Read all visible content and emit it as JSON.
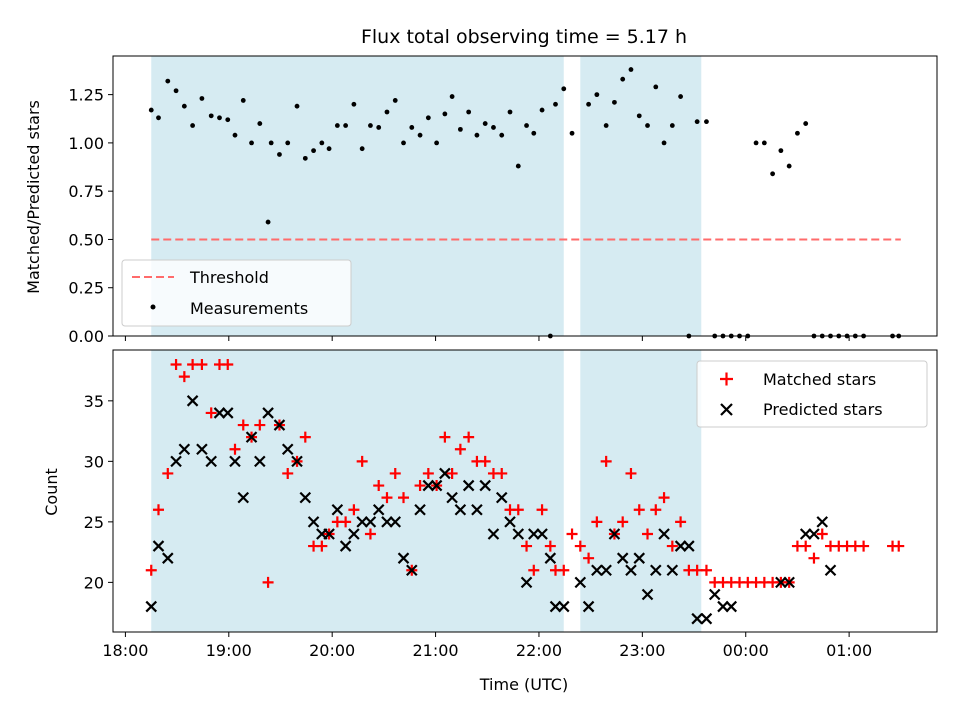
{
  "chart_data": {
    "title": "Flux total observing time = 5.17 h",
    "xlabel": "Time (UTC)",
    "x_unit": "hours since 18:00 UTC",
    "xlim": [
      -0.12,
      7.85
    ],
    "xticks": [
      {
        "value": 0,
        "label": "18:00"
      },
      {
        "value": 1,
        "label": "19:00"
      },
      {
        "value": 2,
        "label": "20:00"
      },
      {
        "value": 3,
        "label": "21:00"
      },
      {
        "value": 4,
        "label": "22:00"
      },
      {
        "value": 5,
        "label": "23:00"
      },
      {
        "value": 6,
        "label": "00:00"
      },
      {
        "value": 7,
        "label": "01:00"
      }
    ],
    "shaded_intervals": [
      [
        0.25,
        4.24
      ],
      [
        4.4,
        5.57
      ]
    ],
    "colors": {
      "shade": "#add8e6",
      "threshold": "#ff6b6b",
      "matched": "#ff0000",
      "predicted": "#000000",
      "measurement": "#000000"
    },
    "top": {
      "type": "scatter",
      "ylabel": "Matched/Predicted stars",
      "ylim": [
        0,
        1.45
      ],
      "yticks": [
        "0.00",
        "0.25",
        "0.50",
        "0.75",
        "1.00",
        "1.25"
      ],
      "threshold": {
        "label": "Threshold",
        "y": 0.5,
        "x_range": [
          0.25,
          7.5
        ]
      },
      "measurements_label": "Measurements",
      "measurements": {
        "x": [
          0.25,
          0.32,
          0.41,
          0.49,
          0.57,
          0.65,
          0.74,
          0.83,
          0.91,
          0.99,
          1.06,
          1.14,
          1.22,
          1.3,
          1.38,
          1.41,
          1.49,
          1.57,
          1.66,
          1.74,
          1.82,
          1.9,
          1.97,
          2.05,
          2.13,
          2.21,
          2.29,
          2.37,
          2.45,
          2.53,
          2.61,
          2.69,
          2.77,
          2.85,
          2.93,
          3.01,
          3.09,
          3.16,
          3.24,
          3.32,
          3.4,
          3.48,
          3.56,
          3.64,
          3.72,
          3.8,
          3.88,
          3.95,
          4.03,
          4.11,
          4.16,
          4.24,
          4.32,
          4.48,
          4.56,
          4.65,
          4.73,
          4.81,
          4.89,
          4.97,
          5.05,
          5.13,
          5.21,
          5.29,
          5.37,
          5.45,
          5.53,
          5.62,
          5.7,
          5.78,
          5.86,
          5.94,
          6.02,
          6.1,
          6.18,
          6.26,
          6.34,
          6.42,
          6.5,
          6.58,
          6.66,
          6.74,
          6.82,
          6.9,
          6.98,
          7.06,
          7.14,
          7.42,
          7.48
        ],
        "y": [
          1.17,
          1.13,
          1.32,
          1.27,
          1.19,
          1.09,
          1.23,
          1.14,
          1.13,
          1.12,
          1.04,
          1.22,
          1.0,
          1.1,
          0.59,
          1.0,
          0.94,
          1.0,
          1.19,
          0.92,
          0.96,
          1.0,
          0.97,
          1.09,
          1.09,
          1.2,
          0.97,
          1.09,
          1.08,
          1.16,
          1.22,
          1.0,
          1.08,
          1.04,
          1.13,
          1.0,
          1.15,
          1.24,
          1.07,
          1.16,
          1.04,
          1.1,
          1.08,
          1.04,
          1.16,
          0.88,
          1.09,
          1.05,
          1.17,
          0.0,
          1.2,
          1.28,
          1.05,
          1.2,
          1.25,
          1.09,
          1.21,
          1.33,
          1.38,
          1.14,
          1.09,
          1.29,
          1.0,
          1.09,
          1.24,
          0.0,
          1.11,
          1.11,
          0.0,
          0.0,
          0.0,
          0.0,
          0.0,
          1.0,
          1.0,
          0.84,
          0.96,
          0.88,
          1.05,
          1.1,
          0.0,
          0.0,
          0.0,
          0.0,
          0.0,
          0.0,
          0.0,
          0.0,
          0.0
        ]
      }
    },
    "bottom": {
      "type": "scatter",
      "ylabel": "Count",
      "ylim": [
        15.9,
        39.2
      ],
      "yticks": [
        20,
        25,
        30,
        35
      ],
      "series": [
        {
          "name": "Matched stars",
          "marker": "plus",
          "x": [
            0.25,
            0.32,
            0.41,
            0.49,
            0.57,
            0.65,
            0.74,
            0.83,
            0.91,
            0.99,
            1.06,
            1.14,
            1.22,
            1.3,
            1.38,
            1.49,
            1.57,
            1.66,
            1.74,
            1.82,
            1.9,
            1.97,
            2.05,
            2.13,
            2.21,
            2.29,
            2.37,
            2.45,
            2.53,
            2.61,
            2.69,
            2.77,
            2.85,
            2.93,
            3.01,
            3.09,
            3.16,
            3.24,
            3.32,
            3.4,
            3.48,
            3.56,
            3.64,
            3.72,
            3.8,
            3.88,
            3.95,
            4.03,
            4.11,
            4.16,
            4.24,
            4.32,
            4.4,
            4.48,
            4.56,
            4.65,
            4.73,
            4.81,
            4.89,
            4.97,
            5.05,
            5.13,
            5.21,
            5.29,
            5.37,
            5.45,
            5.53,
            5.62,
            5.7,
            5.78,
            5.86,
            5.94,
            6.02,
            6.1,
            6.18,
            6.26,
            6.34,
            6.42,
            6.5,
            6.58,
            6.66,
            6.74,
            6.82,
            6.9,
            6.98,
            7.06,
            7.14,
            7.42,
            7.48
          ],
          "y": [
            21,
            26,
            29,
            38,
            37,
            38,
            38,
            34,
            38,
            38,
            31,
            33,
            32,
            33,
            20,
            33,
            29,
            30,
            32,
            23,
            23,
            24,
            25,
            25,
            26,
            30,
            24,
            28,
            27,
            29,
            27,
            21,
            28,
            29,
            28,
            32,
            29,
            31,
            32,
            30,
            30,
            29,
            29,
            26,
            26,
            23,
            21,
            26,
            23,
            21,
            21,
            24,
            23,
            22,
            25,
            30,
            24,
            25,
            29,
            26,
            24,
            26,
            27,
            23,
            25,
            21,
            21,
            21,
            20,
            20,
            20,
            20,
            20,
            20,
            20,
            20,
            20,
            20,
            23,
            23,
            22,
            24,
            23,
            23,
            23,
            23,
            23,
            23,
            23
          ]
        },
        {
          "name": "Predicted stars",
          "marker": "x",
          "x": [
            0.25,
            0.32,
            0.41,
            0.49,
            0.57,
            0.65,
            0.74,
            0.83,
            0.91,
            0.99,
            1.06,
            1.14,
            1.22,
            1.3,
            1.38,
            1.49,
            1.57,
            1.66,
            1.74,
            1.82,
            1.9,
            1.97,
            2.05,
            2.13,
            2.21,
            2.29,
            2.37,
            2.45,
            2.53,
            2.61,
            2.69,
            2.77,
            2.85,
            2.93,
            3.01,
            3.09,
            3.16,
            3.24,
            3.32,
            3.4,
            3.48,
            3.56,
            3.64,
            3.72,
            3.8,
            3.88,
            3.95,
            4.03,
            4.11,
            4.16,
            4.24,
            4.4,
            4.48,
            4.56,
            4.65,
            4.73,
            4.81,
            4.89,
            4.97,
            5.05,
            5.13,
            5.21,
            5.29,
            5.37,
            5.45,
            5.53,
            5.62,
            5.7,
            5.78,
            5.86,
            6.34,
            6.42,
            6.58,
            6.66,
            6.74,
            6.82
          ],
          "y": [
            18,
            23,
            22,
            30,
            31,
            35,
            31,
            30,
            34,
            34,
            30,
            27,
            32,
            30,
            34,
            33,
            31,
            30,
            27,
            25,
            24,
            24,
            26,
            23,
            24,
            25,
            25,
            26,
            25,
            25,
            22,
            21,
            26,
            28,
            28,
            29,
            27,
            26,
            28,
            26,
            28,
            24,
            27,
            25,
            24,
            20,
            24,
            24,
            22,
            18,
            18,
            20,
            18,
            21,
            21,
            24,
            22,
            21,
            22,
            19,
            21,
            24,
            21,
            23,
            23,
            17,
            17,
            19,
            18,
            18,
            20,
            20,
            24,
            24,
            25,
            21
          ]
        }
      ]
    }
  }
}
